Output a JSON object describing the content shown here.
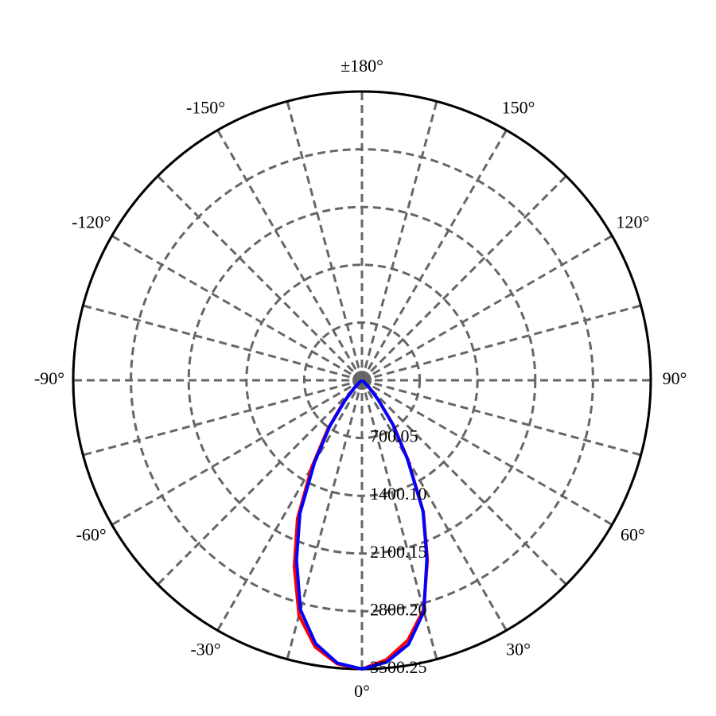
{
  "chart_data": {
    "type": "polar",
    "angle_zero": "bottom",
    "angle_direction": "counterclockwise",
    "xticks": [
      {
        "value": 0,
        "label": "0°"
      },
      {
        "value": 15,
        "label": null
      },
      {
        "value": 30,
        "label": "30°"
      },
      {
        "value": 45,
        "label": null
      },
      {
        "value": 60,
        "label": "60°"
      },
      {
        "value": 75,
        "label": null
      },
      {
        "value": 90,
        "label": "90°"
      },
      {
        "value": 105,
        "label": null
      },
      {
        "value": 120,
        "label": "120°"
      },
      {
        "value": 135,
        "label": null
      },
      {
        "value": 150,
        "label": "150°"
      },
      {
        "value": 165,
        "label": null
      },
      {
        "value": 180,
        "label": "±180°"
      },
      {
        "value": -165,
        "label": null
      },
      {
        "value": -150,
        "label": "-150°"
      },
      {
        "value": -135,
        "label": null
      },
      {
        "value": -120,
        "label": "-120°"
      },
      {
        "value": -105,
        "label": null
      },
      {
        "value": -90,
        "label": "-90°"
      },
      {
        "value": -75,
        "label": null
      },
      {
        "value": -60,
        "label": "-60°"
      },
      {
        "value": -45,
        "label": null
      },
      {
        "value": -30,
        "label": "-30°"
      },
      {
        "value": -15,
        "label": null
      }
    ],
    "ylim": [
      0,
      3500.25
    ],
    "yticks": [
      700.05,
      {
        "value": 1400.1,
        "label": "1400.10"
      },
      2100.15,
      {
        "value": 2800.2,
        "label": "2800.20"
      },
      3500.25
    ],
    "grid": true,
    "x": [
      -90,
      -85,
      -80,
      -75,
      -70,
      -65,
      -60,
      -55,
      -50,
      -45,
      -40,
      -35,
      -30,
      -25,
      -20,
      -15,
      -10,
      -5,
      0,
      5,
      10,
      15,
      20,
      25,
      30,
      35,
      40,
      45,
      50,
      55,
      60,
      65,
      70,
      75,
      80,
      85,
      90
    ],
    "series": [
      {
        "color": "#ff0000",
        "values": [
          0,
          0,
          0,
          0,
          0,
          0,
          0,
          0,
          50,
          150,
          350,
          720,
          1220,
          1850,
          2400,
          2950,
          3280,
          3450,
          3500,
          3400,
          3200,
          2880,
          2320,
          1760,
          1120,
          660,
          310,
          120,
          40,
          0,
          0,
          0,
          0,
          0,
          0,
          0,
          0
        ]
      },
      {
        "color": "#0000ff",
        "values": [
          0,
          0,
          0,
          0,
          0,
          0,
          0,
          0,
          40,
          130,
          320,
          680,
          1150,
          1780,
          2320,
          2880,
          3240,
          3440,
          3500,
          3430,
          3250,
          2900,
          2300,
          1750,
          1100,
          650,
          300,
          120,
          40,
          0,
          0,
          0,
          0,
          0,
          0,
          0,
          0
        ]
      }
    ]
  }
}
